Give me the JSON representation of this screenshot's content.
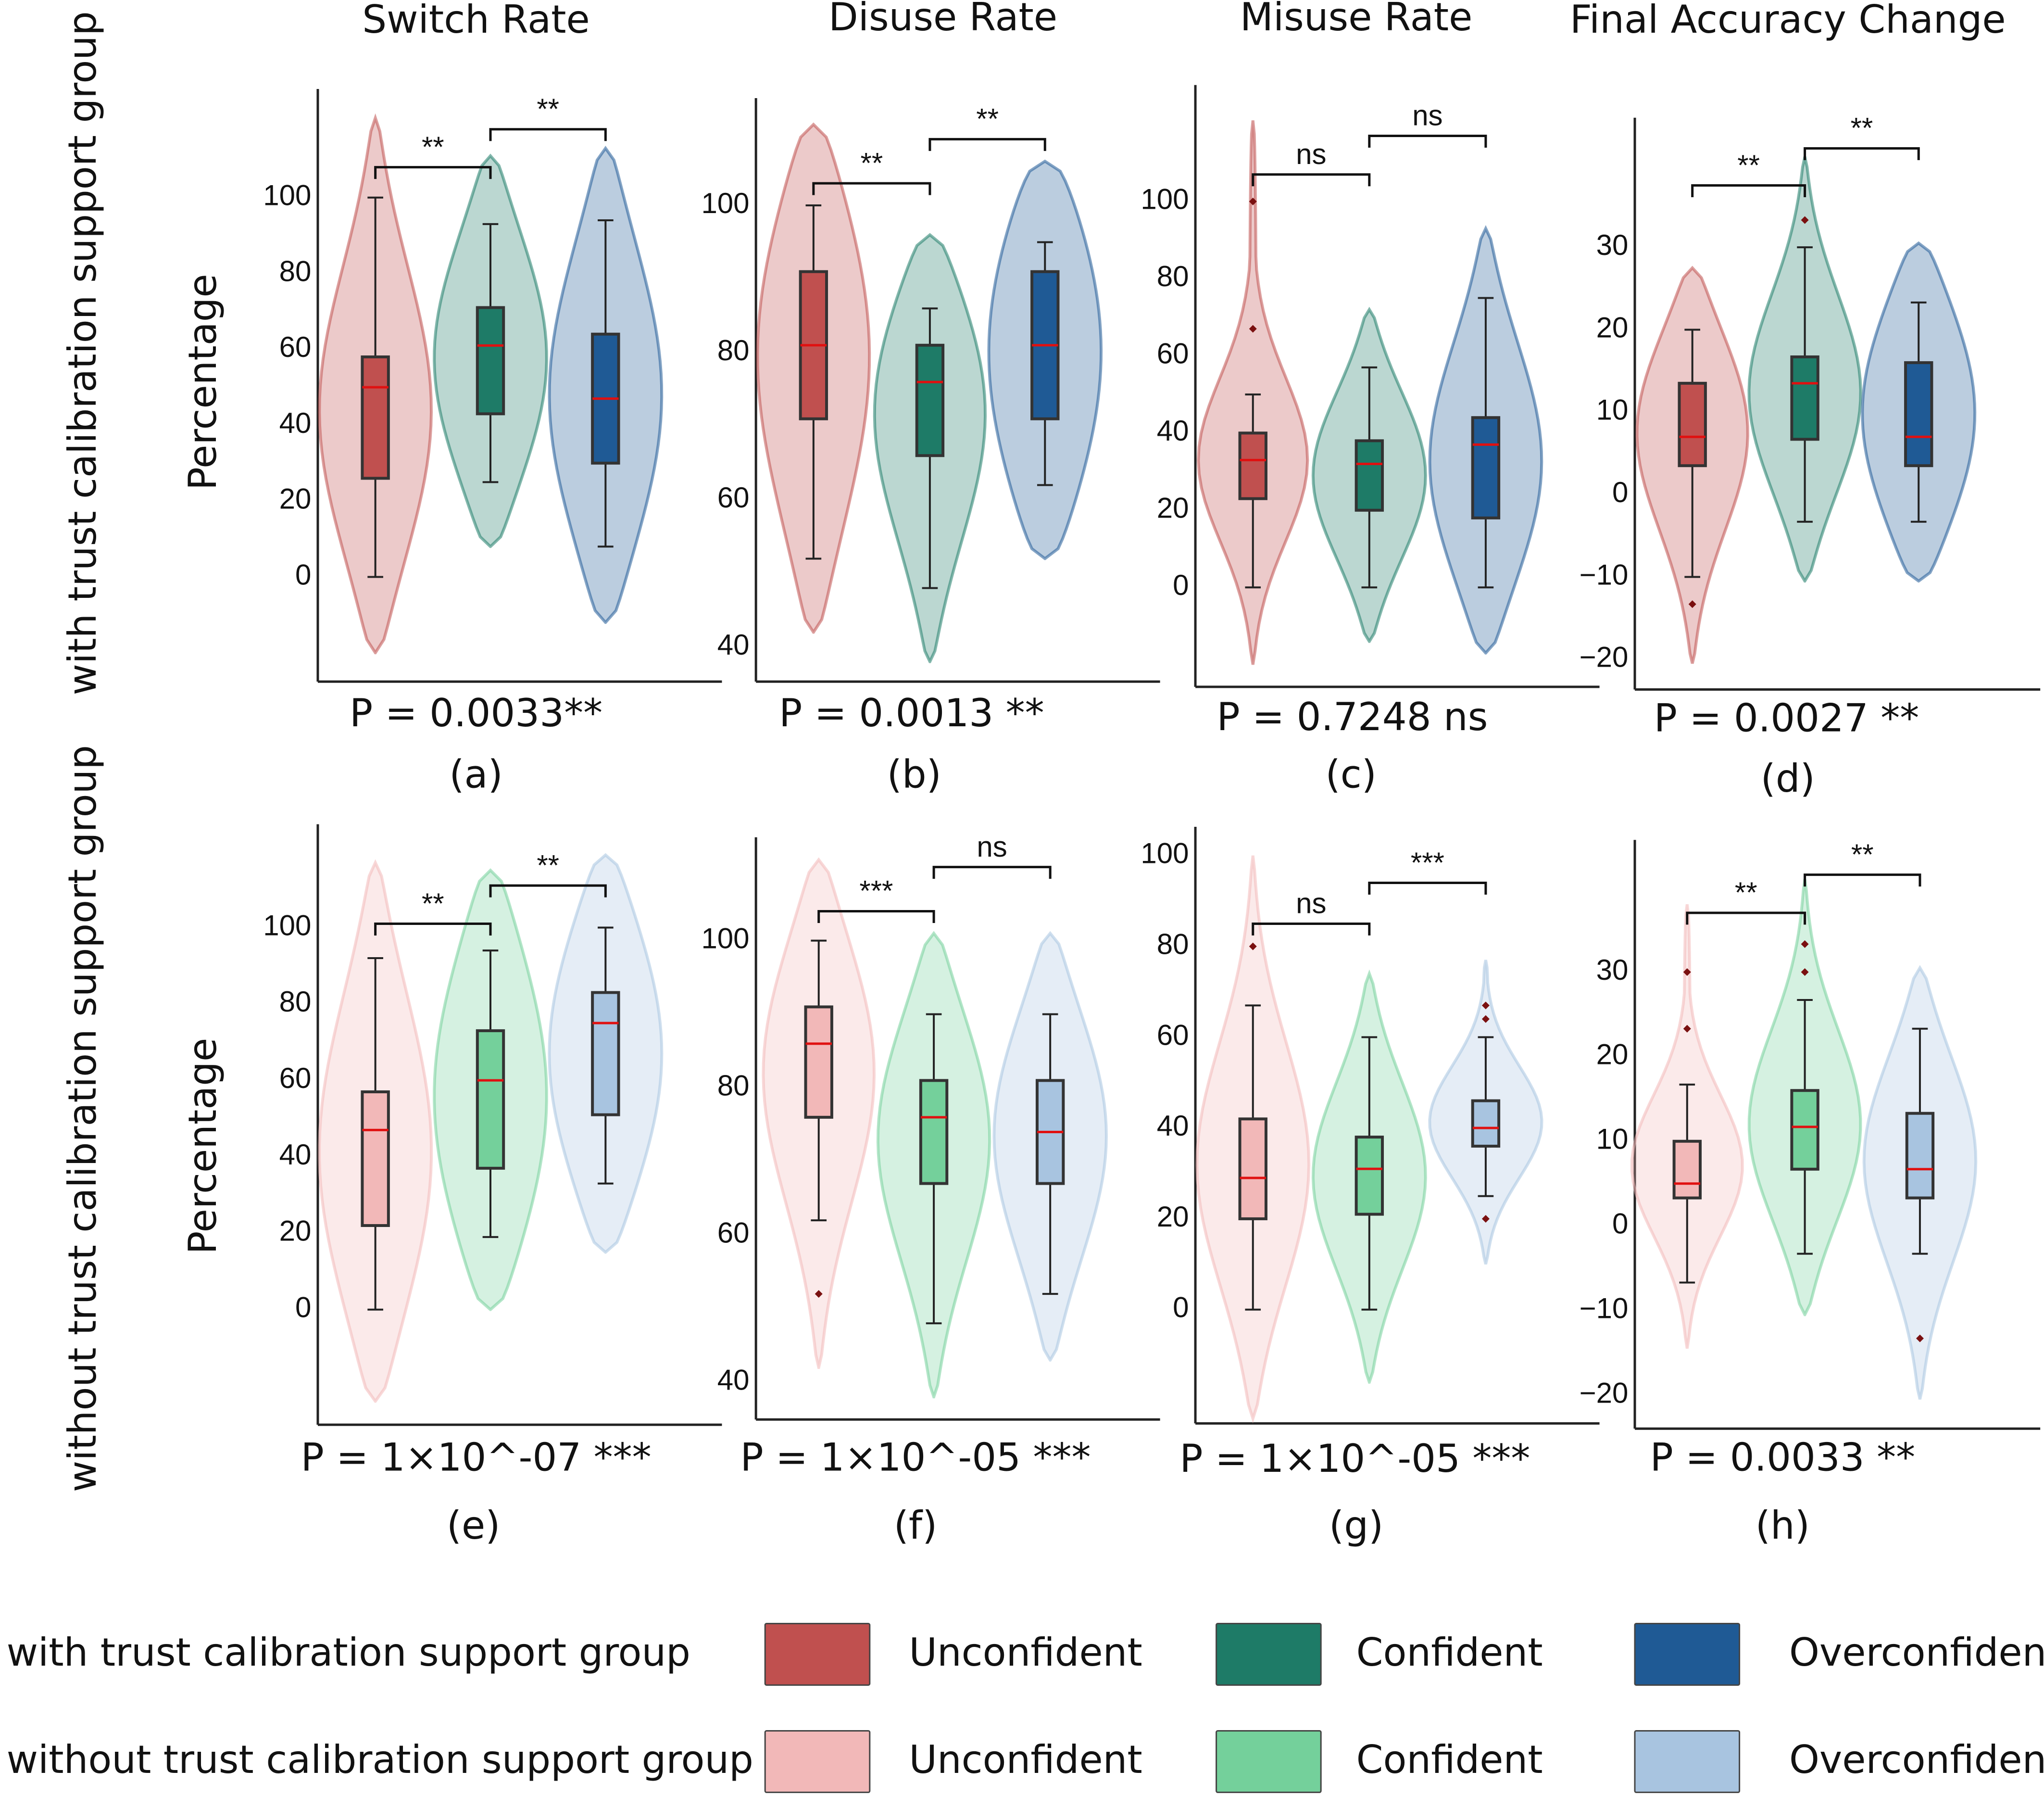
{
  "figure": {
    "row_labels": [
      "with trust calibration support group",
      "without trust calibration support group"
    ],
    "y_axis_label": "Percentage",
    "group_names": [
      "Unconfident",
      "Confident",
      "Overconfident"
    ],
    "colors": {
      "with": [
        "#c0504f",
        "#1e7b67",
        "#1f5a95"
      ],
      "without": [
        "#f2b8b8",
        "#74d09b",
        "#a8c4e0"
      ]
    },
    "legend": {
      "rows": [
        {
          "label": "with trust calibration support group",
          "items": [
            "Unconfident",
            "Confident",
            "Overconfident"
          ]
        },
        {
          "label": "without trust calibration support group",
          "items": [
            "Unconfident",
            "Confident",
            "Overconfident"
          ]
        }
      ]
    }
  },
  "chart_data": [
    {
      "type": "violin",
      "panel": "(a)",
      "title": "Switch Rate",
      "group": "with",
      "ylabel": "Percentage",
      "yticks": [
        0,
        20,
        40,
        60,
        80,
        100
      ],
      "ylim": [
        -27,
        127
      ],
      "pvalue": "P = 0.0033**",
      "brackets": [
        {
          "label": "**",
          "y": 108
        },
        {
          "label": "**",
          "y": 118
        }
      ],
      "series": [
        {
          "name": "Unconfident",
          "q1": 26,
          "median": 50,
          "q3": 58,
          "whisker_low": 0,
          "whisker_high": 100,
          "violin_min": -20,
          "violin_max": 121,
          "outliers": []
        },
        {
          "name": "Confident",
          "q1": 43,
          "median": 61,
          "q3": 71,
          "whisker_low": 25,
          "whisker_high": 93,
          "violin_min": 8,
          "violin_max": 111,
          "outliers": []
        },
        {
          "name": "Overconfident",
          "q1": 30,
          "median": 47,
          "q3": 64,
          "whisker_low": 8,
          "whisker_high": 94,
          "violin_min": -12,
          "violin_max": 113,
          "outliers": []
        }
      ]
    },
    {
      "type": "violin",
      "panel": "(b)",
      "title": "Disuse Rate",
      "group": "with",
      "ylabel": "",
      "yticks": [
        40,
        60,
        80,
        100
      ],
      "ylim": [
        35,
        116
      ],
      "pvalue": "P = 0.0013 **",
      "brackets": [
        {
          "label": "**",
          "y": 103
        },
        {
          "label": "**",
          "y": 109
        }
      ],
      "series": [
        {
          "name": "Unconfident",
          "q1": 71,
          "median": 81,
          "q3": 91,
          "whisker_low": 52,
          "whisker_high": 100,
          "violin_min": 42,
          "violin_max": 111,
          "outliers": []
        },
        {
          "name": "Confident",
          "q1": 66,
          "median": 76,
          "q3": 81,
          "whisker_low": 48,
          "whisker_high": 86,
          "violin_min": 38,
          "violin_max": 96,
          "outliers": []
        },
        {
          "name": "Overconfident",
          "q1": 71,
          "median": 81,
          "q3": 91,
          "whisker_low": 62,
          "whisker_high": 95,
          "violin_min": 52,
          "violin_max": 106,
          "outliers": []
        }
      ]
    },
    {
      "type": "violin",
      "panel": "(c)",
      "title": "Misuse Rate",
      "group": "with",
      "ylabel": "",
      "yticks": [
        0,
        20,
        40,
        60,
        80,
        100
      ],
      "ylim": [
        -26,
        127
      ],
      "pvalue": "P = 0.7248 ns",
      "brackets": [
        {
          "label": "ns",
          "y": 107
        },
        {
          "label": "ns",
          "y": 117
        }
      ],
      "series": [
        {
          "name": "Unconfident",
          "q1": 23,
          "median": 33,
          "q3": 40,
          "whisker_low": 0,
          "whisker_high": 50,
          "violin_min": -20,
          "violin_max": 121,
          "outliers": [
            100,
            67
          ]
        },
        {
          "name": "Confident",
          "q1": 20,
          "median": 32,
          "q3": 38,
          "whisker_low": 0,
          "whisker_high": 57,
          "violin_min": -14,
          "violin_max": 72,
          "outliers": []
        },
        {
          "name": "Overconfident",
          "q1": 18,
          "median": 37,
          "q3": 44,
          "whisker_low": 0,
          "whisker_high": 75,
          "violin_min": -17,
          "violin_max": 93,
          "outliers": []
        }
      ]
    },
    {
      "type": "violin",
      "panel": "(d)",
      "title": "Final Accuracy Change",
      "group": "with",
      "ylabel": "",
      "yticks": [
        -20,
        -10,
        0,
        10,
        20,
        30
      ],
      "ylim": [
        -22.5,
        45.5
      ],
      "pvalue": "P = 0.0027 **",
      "brackets": [
        {
          "label": "**",
          "y": 37.5
        },
        {
          "label": "**",
          "y": 42
        }
      ],
      "series": [
        {
          "name": "Unconfident",
          "q1": 3.5,
          "median": 7,
          "q3": 13.5,
          "whisker_low": -10,
          "whisker_high": 20,
          "violin_min": -20.5,
          "violin_max": 27.5,
          "outliers": [
            -13.3
          ]
        },
        {
          "name": "Confident",
          "q1": 6.7,
          "median": 13.5,
          "q3": 16.7,
          "whisker_low": -3.3,
          "whisker_high": 30,
          "violin_min": -10.5,
          "violin_max": 41,
          "outliers": [
            33.3
          ]
        },
        {
          "name": "Overconfident",
          "q1": 3.5,
          "median": 7,
          "q3": 16,
          "whisker_low": -3.3,
          "whisker_high": 23.3,
          "violin_min": -10.5,
          "violin_max": 30.5,
          "outliers": []
        }
      ]
    },
    {
      "type": "violin",
      "panel": "(e)",
      "title": "",
      "group": "without",
      "ylabel": "Percentage",
      "yticks": [
        0,
        20,
        40,
        60,
        80,
        100
      ],
      "ylim": [
        -27,
        127
      ],
      "pvalue": "P = 1×10^-07 ***",
      "brackets": [
        {
          "label": "**",
          "y": 101
        },
        {
          "label": "**",
          "y": 111
        }
      ],
      "series": [
        {
          "name": "Unconfident",
          "q1": 22,
          "median": 47,
          "q3": 57,
          "whisker_low": 0,
          "whisker_high": 92,
          "violin_min": -24,
          "violin_max": 117,
          "outliers": []
        },
        {
          "name": "Confident",
          "q1": 37,
          "median": 60,
          "q3": 73,
          "whisker_low": 19,
          "whisker_high": 94,
          "violin_min": 0,
          "violin_max": 115,
          "outliers": []
        },
        {
          "name": "Overconfident",
          "q1": 51,
          "median": 75,
          "q3": 83,
          "whisker_low": 33,
          "whisker_high": 100,
          "violin_min": 15,
          "violin_max": 119,
          "outliers": []
        }
      ]
    },
    {
      "type": "violin",
      "panel": "(f)",
      "title": "",
      "group": "without",
      "ylabel": "",
      "yticks": [
        40,
        60,
        80,
        100
      ],
      "ylim": [
        35,
        116
      ],
      "pvalue": "P = 1×10^-05 ***",
      "brackets": [
        {
          "label": "***",
          "y": 104
        },
        {
          "label": "ns",
          "y": 110
        }
      ],
      "series": [
        {
          "name": "Unconfident",
          "q1": 76,
          "median": 86,
          "q3": 91,
          "whisker_low": 62,
          "whisker_high": 100,
          "violin_min": 42,
          "violin_max": 111,
          "outliers": [
            52
          ]
        },
        {
          "name": "Confident",
          "q1": 67,
          "median": 76,
          "q3": 81,
          "whisker_low": 48,
          "whisker_high": 90,
          "violin_min": 38,
          "violin_max": 101,
          "outliers": []
        },
        {
          "name": "Overconfident",
          "q1": 67,
          "median": 74,
          "q3": 81,
          "whisker_low": 52,
          "whisker_high": 90,
          "violin_min": 43,
          "violin_max": 101,
          "outliers": []
        }
      ]
    },
    {
      "type": "violin",
      "panel": "(g)",
      "title": "",
      "group": "without",
      "ylabel": "",
      "yticks": [
        0,
        20,
        40,
        60,
        80,
        100
      ],
      "ylim": [
        -30,
        107
      ],
      "pvalue": "P = 1×10^-05 ***",
      "brackets": [
        {
          "label": "ns",
          "y": 85
        },
        {
          "label": "***",
          "y": 94
        }
      ],
      "series": [
        {
          "name": "Unconfident",
          "q1": 20,
          "median": 29,
          "q3": 42,
          "whisker_low": 0,
          "whisker_high": 67,
          "violin_min": -24,
          "violin_max": 100,
          "outliers": [
            80
          ]
        },
        {
          "name": "Confident",
          "q1": 21,
          "median": 31,
          "q3": 38,
          "whisker_low": 0,
          "whisker_high": 60,
          "violin_min": -16,
          "violin_max": 74,
          "outliers": []
        },
        {
          "name": "Overconfident",
          "q1": 36,
          "median": 40,
          "q3": 46,
          "whisker_low": 25,
          "whisker_high": 60,
          "violin_min": 10,
          "violin_max": 77,
          "outliers": [
            67,
            64,
            20
          ]
        }
      ]
    },
    {
      "type": "violin",
      "panel": "(h)",
      "title": "",
      "group": "without",
      "ylabel": "",
      "yticks": [
        -20,
        -10,
        0,
        10,
        20,
        30
      ],
      "ylim": [
        -22,
        46
      ],
      "pvalue": "P = 0.0033 **",
      "brackets": [
        {
          "label": "**",
          "y": 37
        },
        {
          "label": "**",
          "y": 41.5
        }
      ],
      "series": [
        {
          "name": "Unconfident",
          "q1": 3.3,
          "median": 5,
          "q3": 10,
          "whisker_low": -6.7,
          "whisker_high": 16.7,
          "violin_min": -14.5,
          "violin_max": 38,
          "outliers": [
            30,
            23.3
          ]
        },
        {
          "name": "Confident",
          "q1": 6.7,
          "median": 11.7,
          "q3": 16,
          "whisker_low": -3.3,
          "whisker_high": 26.7,
          "violin_min": -10.5,
          "violin_max": 41,
          "outliers": [
            33.3,
            30
          ]
        },
        {
          "name": "Overconfident",
          "q1": 3.3,
          "median": 6.7,
          "q3": 13.3,
          "whisker_low": -3.3,
          "whisker_high": 23.3,
          "violin_min": -20.5,
          "violin_max": 30.5,
          "outliers": [
            -13.3
          ]
        }
      ]
    }
  ]
}
